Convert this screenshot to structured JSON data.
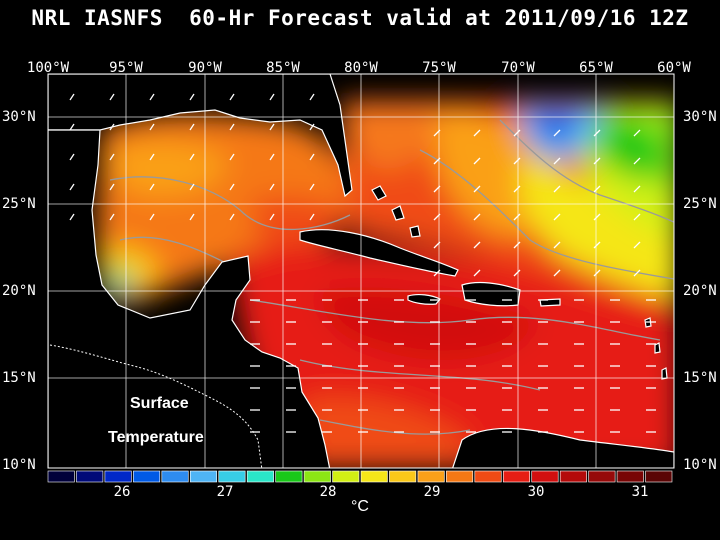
{
  "title": "NRL IASNFS  60-Hr Forecast valid at 2011/09/16 12Z",
  "lon_labels": [
    "100°W",
    "95°W",
    "90°W",
    "85°W",
    "80°W",
    "75°W",
    "70°W",
    "65°W",
    "60°W"
  ],
  "lat_labels": [
    "30°N",
    "25°N",
    "20°N",
    "15°N",
    "10°N"
  ],
  "overlay_text": {
    "line1": "Surface",
    "line2": "Temperature"
  },
  "colorbar": {
    "ticks": [
      "26",
      "27",
      "28",
      "29",
      "30",
      "31"
    ],
    "unit": "°C",
    "colors": [
      "#00003a",
      "#000a78",
      "#0028c8",
      "#005ae6",
      "#2e8cf0",
      "#4fb4f5",
      "#37cde6",
      "#2ae6c8",
      "#19c819",
      "#8ce614",
      "#d2f014",
      "#f5e619",
      "#fac819",
      "#faa019",
      "#f57814",
      "#f04b14",
      "#e61e14",
      "#d20f0f",
      "#b40a0a",
      "#960a0a",
      "#780505",
      "#5a0505"
    ]
  },
  "colors": {
    "land": "#000000",
    "coast": "#ffffff",
    "contour": "#9a9a9a"
  }
}
